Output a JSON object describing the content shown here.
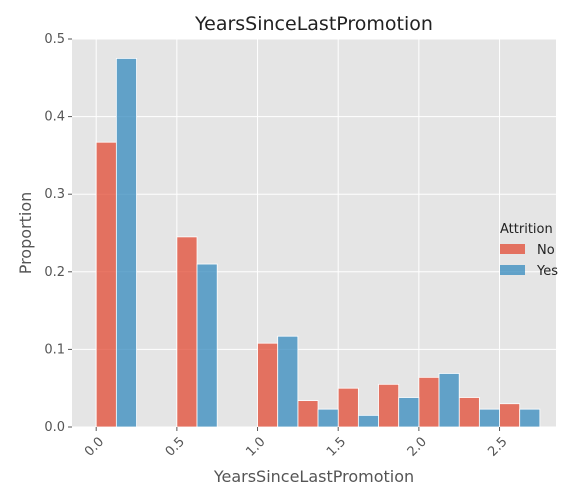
{
  "chart_data": {
    "type": "bar",
    "title": "YearsSinceLastPromotion",
    "xlabel": "YearsSinceLastPromotion",
    "ylabel": "Proportion",
    "xlim": [
      -0.15,
      2.85
    ],
    "ylim": [
      0,
      0.5
    ],
    "x_ticks": [
      "0.0",
      "0.5",
      "1.0",
      "1.5",
      "2.0",
      "2.5"
    ],
    "x_tick_values": [
      0,
      0.5,
      1.0,
      1.5,
      2.0,
      2.5
    ],
    "y_ticks": [
      "0.0",
      "0.1",
      "0.2",
      "0.3",
      "0.4",
      "0.5"
    ],
    "y_tick_values": [
      0,
      0.1,
      0.2,
      0.3,
      0.4,
      0.5
    ],
    "grid": true,
    "legend": {
      "title": "Attrition",
      "placement": "right"
    },
    "bin_edges": [
      0.0,
      0.25,
      0.5,
      0.75,
      1.0,
      1.25,
      1.5,
      1.75,
      2.0,
      2.25,
      2.5,
      2.75
    ],
    "series": [
      {
        "name": "No",
        "color": "#e24a33",
        "values": [
          0.367,
          0.0,
          0.245,
          0.0,
          0.108,
          0.034,
          0.05,
          0.055,
          0.064,
          0.038,
          0.03
        ]
      },
      {
        "name": "Yes",
        "color": "#348abd",
        "values": [
          0.475,
          0.0,
          0.21,
          0.0,
          0.117,
          0.023,
          0.015,
          0.038,
          0.069,
          0.023,
          0.023
        ]
      }
    ]
  }
}
